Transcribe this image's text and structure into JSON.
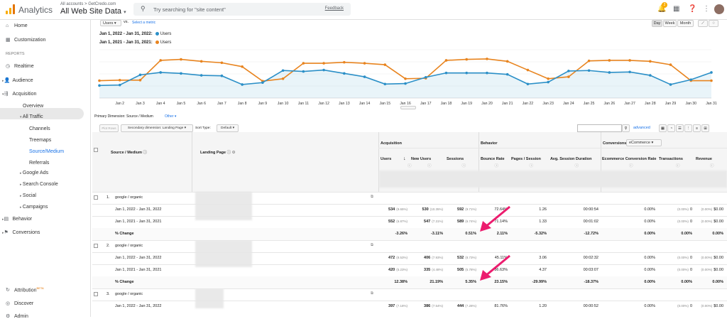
{
  "topbar": {
    "app_name": "Analytics",
    "account_path": "All accounts > GetCredo.com",
    "account_view": "All Web Site Data",
    "search_placeholder": "Try searching for \"site content\"",
    "feedback": "Feedback",
    "notif_count": "2"
  },
  "sidebar": {
    "home": "Home",
    "customization": "Customization",
    "reports_header": "REPORTS",
    "realtime": "Realtime",
    "audience": "Audience",
    "acquisition": "Acquisition",
    "overview": "Overview",
    "all_traffic": "All Traffic",
    "channels": "Channels",
    "treemaps": "Treemaps",
    "source_medium": "Source/Medium",
    "referrals": "Referrals",
    "google_ads": "Google Ads",
    "search_console": "Search Console",
    "social": "Social",
    "campaigns": "Campaigns",
    "behavior": "Behavior",
    "conversions": "Conversions",
    "attribution": "Attribution",
    "attribution_badge": "BETA",
    "discover": "Discover",
    "admin": "Admin"
  },
  "controls": {
    "metric_select": "Users",
    "vs": "vs.",
    "select_metric": "Select a metric",
    "day": "Day",
    "week": "Week",
    "month": "Month"
  },
  "legend": [
    {
      "range": "Jan 1, 2022 - Jan 31, 2022:",
      "name": "Users",
      "color": "#2b8fc7"
    },
    {
      "range": "Jan 1, 2021 - Jan 31, 2021:",
      "name": "Users",
      "color": "#e8841f"
    }
  ],
  "chart_data": {
    "type": "line",
    "x": [
      "Jan 1",
      "Jan 2",
      "Jan 3",
      "Jan 4",
      "Jan 5",
      "Jan 6",
      "Jan 7",
      "Jan 8",
      "Jan 9",
      "Jan 10",
      "Jan 11",
      "Jan 12",
      "Jan 13",
      "Jan 14",
      "Jan 15",
      "Jan 16",
      "Jan 17",
      "Jan 18",
      "Jan 19",
      "Jan 20",
      "Jan 21",
      "Jan 22",
      "Jan 23",
      "Jan 24",
      "Jan 25",
      "Jan 26",
      "Jan 27",
      "Jan 28",
      "Jan 29",
      "Jan 30",
      "Jan 31"
    ],
    "x_tick_labels": [
      "Jan 2",
      "Jan 3",
      "Jan 4",
      "Jan 5",
      "Jan 6",
      "Jan 7",
      "Jan 8",
      "Jan 9",
      "Jan 10",
      "Jan 11",
      "Jan 12",
      "Jan 13",
      "Jan 14",
      "Jan 15",
      "Jan 16",
      "Jan 17",
      "Jan 18",
      "Jan 19",
      "Jan 20",
      "Jan 21",
      "Jan 22",
      "Jan 23",
      "Jan 24",
      "Jan 25",
      "Jan 26",
      "Jan 27",
      "Jan 28",
      "Jan 29",
      "Jan 30",
      "Jan 31"
    ],
    "ylim": [
      0,
      100
    ],
    "series": [
      {
        "name": "Users",
        "color": "#2b8fc7",
        "values": [
          26,
          27,
          48,
          53,
          51,
          47,
          46,
          28,
          32,
          57,
          55,
          58,
          51,
          44,
          29,
          30,
          43,
          52,
          52,
          52,
          49,
          29,
          33,
          56,
          57,
          53,
          54,
          47,
          28,
          38,
          53
        ]
      },
      {
        "name": "Users",
        "color": "#e8841f",
        "values": [
          36,
          37,
          37,
          78,
          80,
          76,
          73,
          65,
          35,
          40,
          72,
          72,
          74,
          72,
          69,
          40,
          41,
          78,
          80,
          81,
          76,
          58,
          40,
          44,
          77,
          78,
          78,
          76,
          69,
          36,
          36
        ]
      }
    ],
    "grid": true
  },
  "primary_dimension": {
    "label": "Primary Dimension:",
    "value": "Source / Medium",
    "other": "Other"
  },
  "table_controls": {
    "plot_rows": "Plot Rows",
    "secondary_dimension": "Secondary dimension: Landing Page",
    "sort_type_label": "Sort Type:",
    "sort_type": "Default",
    "advanced": "advanced"
  },
  "table": {
    "dim_headers": [
      "Source / Medium",
      "Landing Page"
    ],
    "group_headers": [
      "Acquisition",
      "Behavior",
      "Conversions"
    ],
    "conversion_select": "eCommerce",
    "metric_headers": [
      "Users",
      "New Users",
      "Sessions",
      "Bounce Rate",
      "Pages / Session",
      "Avg. Session Duration",
      "Ecommerce Conversion Rate",
      "Transactions",
      "Revenue"
    ],
    "rows": [
      {
        "type": "group",
        "index": "1.",
        "source": "google / organic"
      },
      {
        "type": "data",
        "label": "Jan 1, 2022 - Jan 31, 2022",
        "cells": [
          "534",
          "530",
          "592",
          "72.64%",
          "1.26",
          "00:00:54",
          "0.00%",
          "0",
          "$0.00"
        ],
        "pcts": [
          "(9.65%)",
          "(10.35%)",
          "(9.71%)",
          "",
          "",
          "",
          "",
          "(0.00%)",
          "(0.00%)"
        ]
      },
      {
        "type": "data",
        "label": "Jan 1, 2021 - Jan 31, 2021",
        "cells": [
          "552",
          "547",
          "589",
          "71.14%",
          "1.33",
          "00:01:02",
          "0.00%",
          "0",
          "$0.00"
        ],
        "pcts": [
          "(6.87%)",
          "(7.31%)",
          "(6.74%)",
          "",
          "",
          "",
          "",
          "(0.00%)",
          "(0.00%)"
        ]
      },
      {
        "type": "change",
        "label": "% Change",
        "cells": [
          "-3.26%",
          "-3.11%",
          "0.51%",
          "2.11%",
          "-5.32%",
          "-12.72%",
          "0.00%",
          "0.00%",
          "0.00%"
        ]
      },
      {
        "type": "group",
        "index": "2.",
        "source": "google / organic"
      },
      {
        "type": "data",
        "label": "Jan 1, 2022 - Jan 31, 2022",
        "cells": [
          "472",
          "406",
          "532",
          "45.11%",
          "3.06",
          "00:02:32",
          "0.00%",
          "0",
          "$0.00"
        ],
        "pcts": [
          "(8.53%)",
          "(7.93%)",
          "(8.73%)",
          "",
          "",
          "",
          "",
          "(0.00%)",
          "(0.00%)"
        ]
      },
      {
        "type": "data",
        "label": "Jan 1, 2021 - Jan 31, 2021",
        "cells": [
          "420",
          "335",
          "505",
          "36.63%",
          "4.37",
          "00:03:07",
          "0.00%",
          "0",
          "$0.00"
        ],
        "pcts": [
          "(5.23%)",
          "(4.48%)",
          "(5.78%)",
          "",
          "",
          "",
          "",
          "(0.00%)",
          "(0.00%)"
        ]
      },
      {
        "type": "change",
        "label": "% Change",
        "cells": [
          "12.38%",
          "21.19%",
          "5.35%",
          "23.15%",
          "-29.99%",
          "-18.37%",
          "0.00%",
          "0.00%",
          "0.00%"
        ]
      },
      {
        "type": "group",
        "index": "3.",
        "source": "google / organic"
      },
      {
        "type": "data",
        "label": "Jan 1, 2022 - Jan 31, 2022",
        "cells": [
          "397",
          "386",
          "444",
          "81.76%",
          "1.20",
          "00:00:52",
          "0.00%",
          "0",
          "$0.00"
        ],
        "pcts": [
          "(7.18%)",
          "(7.54%)",
          "(7.28%)",
          "",
          "",
          "",
          "",
          "(0.00%)",
          "(0.00%)"
        ]
      }
    ]
  }
}
